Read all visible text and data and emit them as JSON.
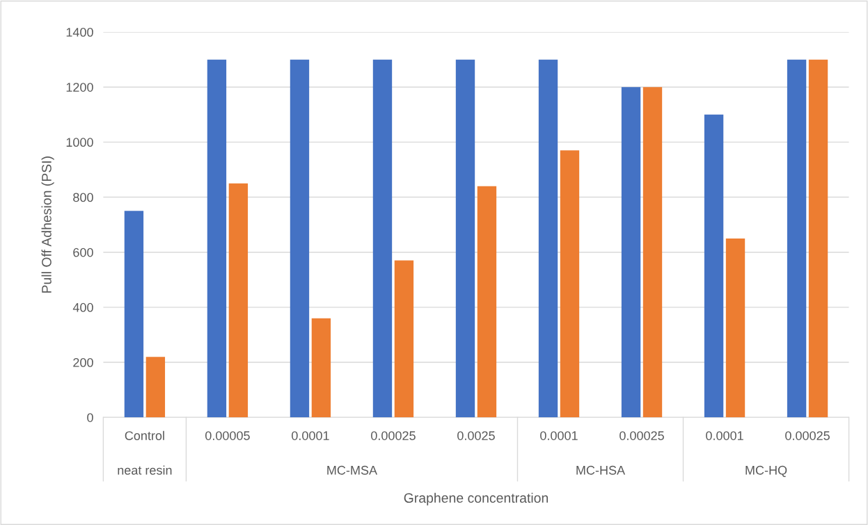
{
  "chart_data": {
    "type": "bar",
    "xlabel": "Graphene concentration",
    "ylabel": "Pull Off Adhesion (PSI)",
    "categories": [
      "Control",
      "0.00005",
      "0.0001",
      "0.00025",
      "0.0025",
      "0.0001",
      "0.00025",
      "0.0001",
      "0.00025"
    ],
    "series": [
      {
        "color": "#4472c4",
        "values": [
          750,
          1300,
          1300,
          1300,
          1300,
          1300,
          1200,
          1100,
          1300
        ]
      },
      {
        "color": "#ed7d31",
        "values": [
          220,
          850,
          360,
          570,
          840,
          970,
          1200,
          650,
          1300
        ]
      }
    ],
    "annotations": [
      "neat resin",
      "MC-MSA",
      "MC-HSA",
      "MC-HQ"
    ],
    "ylim": [
      0,
      1400
    ],
    "yticks": [
      0,
      200,
      400,
      600,
      800,
      1000,
      1200,
      1400
    ],
    "grid": "y"
  }
}
